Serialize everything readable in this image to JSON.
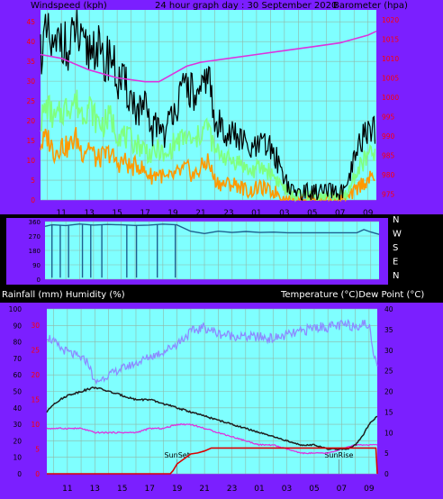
{
  "colors": {
    "background": "#000000",
    "frame": "#7b1fff",
    "plot_bg": "#7fffff",
    "grid": "#8fb8a8",
    "wind_gust": "#000000",
    "wind_avg": "#7fff7f",
    "wind_low": "#ff9900",
    "barometer": "#dd33dd",
    "direction": "#1f5f8f",
    "temperature": "#1f1f1f",
    "humidity": "#8c8cff",
    "dewpoint": "#dd33dd",
    "rainfall": "#dd0000",
    "left_axis_text": "#ff0000",
    "white_text": "#ffffff",
    "dark_text": "#000000"
  },
  "chart_data": [
    {
      "type": "line",
      "name": "wind-barometer",
      "header": {
        "left": "Windspeed (kph)",
        "center": "24 hour graph day : 30 September 2020",
        "right": "Barometer (hpa)"
      },
      "yleft_ticks": [
        "0",
        "5",
        "10",
        "15",
        "20",
        "25",
        "30",
        "35",
        "40",
        "45"
      ],
      "yleft_range": [
        0,
        48
      ],
      "yright_ticks": [
        "975",
        "980",
        "985",
        "990",
        "995",
        "1000",
        "1005",
        "1010",
        "1015",
        "1020"
      ],
      "yright_range": [
        973.5,
        1022.5
      ],
      "x_ticks": [
        "11",
        "13",
        "15",
        "17",
        "19",
        "21",
        "23",
        "01",
        "03",
        "05",
        "07",
        "09"
      ],
      "x_range": [
        9.5,
        33.6
      ],
      "wind_gust": {
        "x": [
          9.5,
          10,
          10.5,
          11,
          11.5,
          12,
          12.5,
          13,
          13.5,
          14,
          14.5,
          15,
          15.5,
          16,
          16.5,
          17,
          17.5,
          18,
          18.5,
          19,
          19.5,
          20,
          20.5,
          21,
          21.5,
          22,
          22.5,
          23,
          23.5,
          24,
          24.5,
          25,
          25.5,
          26,
          26.5,
          27,
          27.5,
          28,
          28.5,
          29,
          29.5,
          30,
          30.5,
          31,
          31.5,
          32,
          32.5,
          33,
          33.5
        ],
        "y": [
          38,
          41,
          36,
          43,
          35,
          44,
          37,
          38,
          40,
          33,
          38,
          30,
          29,
          26,
          22,
          23,
          17,
          20,
          16,
          24,
          25,
          30,
          26,
          25,
          34,
          18,
          19,
          17,
          16,
          15,
          12,
          13,
          14,
          13,
          10,
          6,
          2,
          2,
          2,
          2,
          2,
          2,
          2,
          2,
          2,
          10,
          15,
          18,
          18
        ]
      },
      "wind_avg": {
        "x": [
          9.5,
          10,
          10.5,
          11,
          11.5,
          12,
          12.5,
          13,
          13.5,
          14,
          14.5,
          15,
          15.5,
          16,
          16.5,
          17,
          17.5,
          18,
          18.5,
          19,
          19.5,
          20,
          20.5,
          21,
          21.5,
          22,
          22.5,
          23,
          23.5,
          24,
          24.5,
          25,
          25.5,
          26,
          26.5,
          27,
          27.5,
          28,
          28.5,
          29,
          29.5,
          30,
          30.5,
          31,
          31.5,
          32,
          32.5,
          33,
          33.5
        ],
        "y": [
          20,
          24,
          20,
          22,
          24,
          25,
          22,
          24,
          20,
          19,
          21,
          17,
          16,
          15,
          14,
          13,
          11,
          13,
          10,
          14,
          15,
          16,
          14,
          17,
          19,
          12,
          12,
          10,
          10,
          9,
          7,
          8,
          8,
          7,
          5,
          3,
          1,
          1,
          1,
          1,
          1,
          1,
          1,
          1,
          1,
          6,
          9,
          11,
          12
        ]
      },
      "wind_low": {
        "x": [
          9.5,
          10,
          10.5,
          11,
          11.5,
          12,
          12.5,
          13,
          13.5,
          14,
          14.5,
          15,
          15.5,
          16,
          16.5,
          17,
          17.5,
          18,
          18.5,
          19,
          19.5,
          20,
          20.5,
          21,
          21.5,
          22,
          22.5,
          23,
          23.5,
          24,
          24.5,
          25,
          25.5,
          26,
          26.5,
          27,
          27.5,
          28,
          28.5,
          29,
          29.5,
          30,
          30.5,
          31,
          31.5,
          32,
          32.5,
          33,
          33.5
        ],
        "y": [
          14,
          16,
          12,
          14,
          13,
          16,
          12,
          14,
          10,
          11,
          12,
          9,
          10,
          8,
          9,
          7,
          6,
          7,
          5,
          6,
          7,
          8,
          6,
          8,
          10,
          5,
          4,
          4,
          4,
          3,
          2,
          3,
          3,
          2,
          2,
          0,
          0,
          0,
          0,
          0,
          0,
          0,
          0,
          0,
          0,
          2,
          4,
          5,
          6
        ]
      },
      "barometer": {
        "x": [
          9.5,
          11,
          13,
          15,
          17,
          18,
          19,
          20,
          21,
          23,
          25,
          27,
          29,
          31,
          33,
          33.6
        ],
        "y": [
          1011,
          1010,
          1007,
          1005,
          1004,
          1004,
          1006,
          1008,
          1009,
          1010,
          1011,
          1012,
          1013,
          1014,
          1016,
          1017
        ]
      }
    },
    {
      "type": "line",
      "name": "wind-direction",
      "y_ticks": [
        "0",
        "90",
        "180",
        "270",
        "360"
      ],
      "y_range": [
        0,
        360
      ],
      "right_labels": [
        "N",
        "W",
        "S",
        "E",
        "N"
      ],
      "x_range": [
        9.5,
        33.6
      ],
      "direction": {
        "x": [
          9.5,
          10,
          11,
          12,
          13,
          14,
          15,
          16,
          17,
          18,
          19,
          19.5,
          20,
          21,
          22,
          23,
          24,
          25,
          26,
          27,
          28,
          29,
          30,
          31,
          32,
          32.5,
          33,
          33.6
        ],
        "y": [
          330,
          340,
          335,
          345,
          338,
          342,
          340,
          336,
          338,
          344,
          340,
          320,
          300,
          285,
          300,
          292,
          298,
          292,
          294,
          290,
          290,
          290,
          290,
          290,
          290,
          310,
          295,
          280
        ]
      },
      "north_crossings": [
        10.0,
        10.6,
        11.2,
        12.2,
        12.8,
        13.6,
        15.4,
        16.1,
        17.6,
        18.9
      ]
    },
    {
      "type": "line",
      "name": "temp-humidity-rain",
      "header": {
        "left": "Rainfall (mm)  Humidity (%)",
        "right": "Temperature (°C)Dew Point (°C)"
      },
      "y_left_ticks": [
        "0",
        "10",
        "20",
        "30",
        "40",
        "50",
        "60",
        "70",
        "80",
        "90",
        "100"
      ],
      "y_left_range": [
        0,
        100
      ],
      "y_left_red_ticks": [
        "0",
        "5",
        "10",
        "15",
        "20",
        "25",
        "30"
      ],
      "y_right_ticks": [
        "0",
        "5",
        "10",
        "15",
        "20",
        "25",
        "30",
        "35",
        "40"
      ],
      "y_right_range": [
        0,
        40
      ],
      "x_ticks": [
        "11",
        "13",
        "15",
        "17",
        "19",
        "21",
        "23",
        "01",
        "03",
        "05",
        "07",
        "09"
      ],
      "x_range": [
        9.5,
        33.6
      ],
      "humidity": {
        "x": [
          9.5,
          10.5,
          11.5,
          12.5,
          13,
          14,
          15,
          16,
          17,
          18,
          19,
          20,
          21,
          22,
          23,
          24,
          25,
          26,
          27,
          28,
          29,
          30,
          31,
          32,
          32.5,
          33,
          33.3,
          33.6
        ],
        "y": [
          84,
          76,
          72,
          68,
          55,
          60,
          64,
          67,
          71,
          74,
          79,
          86,
          89,
          85,
          84,
          83,
          83,
          82,
          84,
          86,
          89,
          89,
          90,
          90,
          91,
          90,
          75,
          67
        ]
      },
      "temperature": {
        "x": [
          9.5,
          10,
          11,
          12,
          13,
          14,
          15,
          16,
          17,
          18,
          19,
          20,
          21,
          22,
          23,
          24,
          25,
          26,
          27,
          28,
          29,
          30,
          31,
          31.5,
          32,
          32.5,
          33,
          33.6
        ],
        "y": [
          15,
          17,
          19,
          20,
          21,
          20,
          19,
          18,
          18,
          17,
          16,
          15,
          14,
          13,
          12,
          11,
          10,
          9,
          8,
          7,
          7,
          6,
          6,
          6,
          7,
          9,
          12,
          14
        ]
      },
      "dewpoint": {
        "x": [
          9.5,
          10,
          11,
          12,
          13,
          14,
          15,
          16,
          17,
          18,
          19,
          20,
          21,
          22,
          23,
          24,
          25,
          26,
          27,
          28,
          29,
          30,
          31,
          32,
          32.5,
          33,
          33.6
        ],
        "y": [
          11,
          11,
          11,
          11,
          10,
          10,
          10,
          10,
          11,
          11,
          12,
          12,
          11,
          10,
          9,
          8,
          7,
          7,
          6,
          5,
          5,
          5,
          6,
          7,
          7,
          7,
          7
        ]
      },
      "rainfall": {
        "x": [
          9.5,
          18.5,
          18.7,
          19,
          19.5,
          20,
          20.5,
          21,
          21.5,
          33,
          33.2,
          33.5,
          33.6
        ],
        "y": [
          0,
          0,
          0.6,
          2,
          3,
          4,
          4.2,
          4.6,
          5.2,
          5.2,
          5.2,
          5.2,
          0
        ]
      },
      "annotations": [
        {
          "text": "SunSet",
          "x": 19.0
        },
        {
          "text": "SunRise",
          "x": 30.8
        }
      ]
    }
  ]
}
